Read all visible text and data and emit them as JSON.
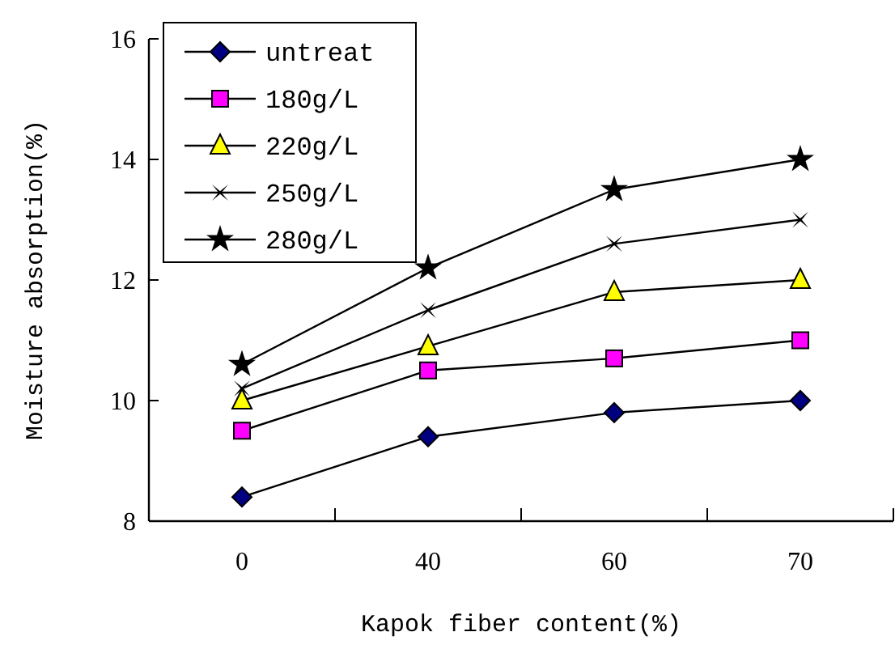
{
  "chart_data": {
    "type": "line",
    "xlabel": "Kapok fiber content(%)",
    "ylabel": "Moisture absorption(%)",
    "categories": [
      "0",
      "40",
      "60",
      "70"
    ],
    "ylim": [
      8,
      16
    ],
    "yticks": [
      8,
      10,
      12,
      14,
      16
    ],
    "grid": false,
    "legend": "top left",
    "line_style": "solid",
    "series": [
      {
        "name": "untreat",
        "color": "#000080",
        "marker": "diamond",
        "values": [
          8.4,
          9.4,
          9.8,
          10.0
        ]
      },
      {
        "name": "180g/L",
        "color": "#ff00ff",
        "marker": "square",
        "values": [
          9.5,
          10.5,
          10.7,
          11.0
        ]
      },
      {
        "name": "220g/L",
        "color": "#ffff00",
        "marker": "triangle",
        "values": [
          10.0,
          10.9,
          11.8,
          12.0
        ]
      },
      {
        "name": "250g/L",
        "color": "#000000",
        "marker": "cross",
        "values": [
          10.2,
          11.5,
          12.6,
          13.0
        ]
      },
      {
        "name": "280g/L",
        "color": "#000000",
        "marker": "star",
        "values": [
          10.6,
          12.2,
          13.5,
          14.0
        ]
      }
    ]
  }
}
